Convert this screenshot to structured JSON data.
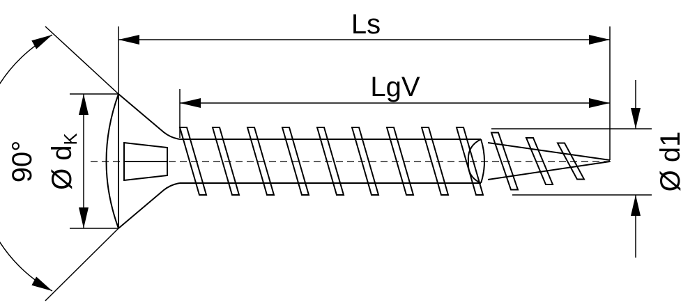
{
  "diagram": {
    "labels": {
      "overall_length": "Ls",
      "thread_length": "LgV",
      "head_angle": "90°",
      "head_diameter_symbol": "Ø d",
      "head_diameter_subscript": "K",
      "thread_diameter": "Ø d1"
    },
    "colors": {
      "line": "#000000",
      "background": "#ffffff"
    }
  }
}
